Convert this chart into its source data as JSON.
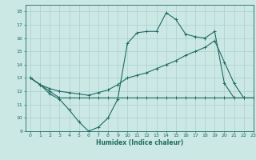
{
  "xlabel": "Humidex (Indice chaleur)",
  "xlim": [
    -0.5,
    23
  ],
  "ylim": [
    9,
    18.5
  ],
  "yticks": [
    9,
    10,
    11,
    12,
    13,
    14,
    15,
    16,
    17,
    18
  ],
  "xticks": [
    0,
    1,
    2,
    3,
    4,
    5,
    6,
    7,
    8,
    9,
    10,
    11,
    12,
    13,
    14,
    15,
    16,
    17,
    18,
    19,
    20,
    21,
    22,
    23
  ],
  "background_color": "#cce8e5",
  "grid_color": "#aacfcc",
  "line_color": "#1e6b61",
  "lines": [
    {
      "x": [
        0,
        1,
        2,
        3,
        4,
        5,
        6,
        7,
        8,
        9,
        10,
        11,
        12,
        13,
        14,
        15,
        16,
        17,
        18,
        19,
        20,
        21,
        22,
        23
      ],
      "y": [
        13,
        12.5,
        11.8,
        11.4,
        10.6,
        9.7,
        9.0,
        9.3,
        10.0,
        11.4,
        15.6,
        16.4,
        16.5,
        16.5,
        17.9,
        17.4,
        16.3,
        16.1,
        16.0,
        16.5,
        12.6,
        11.5,
        11.5,
        11.5
      ]
    },
    {
      "x": [
        0,
        1,
        2,
        3,
        4,
        5,
        6,
        7,
        8,
        9,
        10,
        11,
        12,
        13,
        14,
        15,
        16,
        17,
        18,
        19,
        20,
        21,
        22,
        23
      ],
      "y": [
        13,
        12.5,
        12.0,
        11.5,
        11.5,
        11.5,
        11.5,
        11.5,
        11.5,
        11.5,
        11.5,
        11.5,
        11.5,
        11.5,
        11.5,
        11.5,
        11.5,
        11.5,
        11.5,
        11.5,
        11.5,
        11.5,
        11.5,
        11.5
      ]
    },
    {
      "x": [
        0,
        1,
        2,
        3,
        4,
        5,
        6,
        7,
        8,
        9,
        10,
        11,
        12,
        13,
        14,
        15,
        16,
        17,
        18,
        19,
        20,
        21,
        22,
        23
      ],
      "y": [
        13,
        12.5,
        12.2,
        12.0,
        11.9,
        11.8,
        11.7,
        11.9,
        12.1,
        12.5,
        13.0,
        13.2,
        13.4,
        13.7,
        14.0,
        14.3,
        14.7,
        15.0,
        15.3,
        15.8,
        14.2,
        12.6,
        11.5,
        11.5
      ]
    }
  ]
}
